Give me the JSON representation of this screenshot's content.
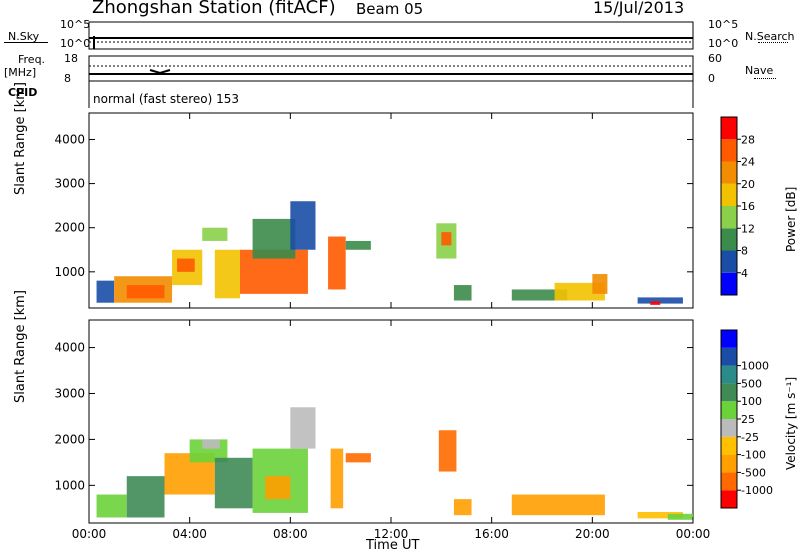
{
  "header": {
    "title": "Zhongshan Station (fitACF)",
    "beam": "Beam 05",
    "date": "15/Jul/2013"
  },
  "top_panels": {
    "nsky_label": "N.Sky",
    "nsky_ticks": [
      "10^5",
      "10^0"
    ],
    "nsearch_label": "N.Search",
    "nsearch_ticks": [
      "10^5",
      "10^0"
    ],
    "freq_label_top": "Freq.",
    "freq_label_unit": "[MHz]",
    "freq_ticks": [
      "18",
      "8"
    ],
    "nave_label": "Nave",
    "nave_ticks": [
      "60",
      "0"
    ],
    "cpid_label": "CPID",
    "cpid_value": "normal (fast stereo) 153"
  },
  "colors": {
    "power": [
      "#0000ff",
      "#1a4ea6",
      "#3b8b4a",
      "#8bd04a",
      "#f2c200",
      "#f28c00",
      "#ff5a00",
      "#ff0000"
    ],
    "velocity": [
      "#ff0000",
      "#ff6a00",
      "#ff9f00",
      "#ffc000",
      "#bbbbbb",
      "#6cd23a",
      "#3f8a55",
      "#2b8a8a",
      "#1a4ea6",
      "#0000ff"
    ]
  },
  "chart_data": [
    {
      "type": "heatmap",
      "title": "",
      "xlabel": "Time UT",
      "ylabel": "Slant Range [km]",
      "x_ticks": [
        "00:00",
        "04:00",
        "08:00",
        "12:00",
        "16:00",
        "20:00",
        "00:00"
      ],
      "y_ticks": [
        "1000",
        "2000",
        "3000",
        "4000"
      ],
      "ylim": [
        180,
        4600
      ],
      "colorbar_label": "Power [dB]",
      "colorbar_ticks": [
        "4",
        "8",
        "12",
        "16",
        "20",
        "24",
        "28"
      ],
      "colorbar_range": [
        0,
        32
      ],
      "patches": [
        {
          "t0": 0.3,
          "t1": 1.0,
          "r0": 300,
          "r1": 800,
          "v": 6
        },
        {
          "t0": 1.0,
          "t1": 3.3,
          "r0": 300,
          "r1": 900,
          "v": 20
        },
        {
          "t0": 1.5,
          "t1": 3.0,
          "r0": 400,
          "r1": 700,
          "v": 27
        },
        {
          "t0": 3.3,
          "t1": 4.5,
          "r0": 700,
          "r1": 1500,
          "v": 18
        },
        {
          "t0": 3.5,
          "t1": 4.2,
          "r0": 1000,
          "r1": 1300,
          "v": 26
        },
        {
          "t0": 4.5,
          "t1": 5.5,
          "r0": 1700,
          "r1": 2000,
          "v": 12
        },
        {
          "t0": 5.0,
          "t1": 6.0,
          "r0": 400,
          "r1": 1500,
          "v": 16
        },
        {
          "t0": 6.0,
          "t1": 8.7,
          "r0": 500,
          "r1": 1500,
          "v": 27
        },
        {
          "t0": 6.5,
          "t1": 8.2,
          "r0": 1300,
          "r1": 2200,
          "v": 10
        },
        {
          "t0": 8.0,
          "t1": 9.0,
          "r0": 1500,
          "r1": 2600,
          "v": 7
        },
        {
          "t0": 9.5,
          "t1": 10.2,
          "r0": 600,
          "r1": 1800,
          "v": 26
        },
        {
          "t0": 10.2,
          "t1": 11.2,
          "r0": 1500,
          "r1": 1700,
          "v": 8
        },
        {
          "t0": 13.8,
          "t1": 14.6,
          "r0": 1300,
          "r1": 2100,
          "v": 15
        },
        {
          "t0": 14.0,
          "t1": 14.4,
          "r0": 1600,
          "r1": 1900,
          "v": 24
        },
        {
          "t0": 14.5,
          "t1": 15.2,
          "r0": 350,
          "r1": 700,
          "v": 10
        },
        {
          "t0": 16.8,
          "t1": 19.0,
          "r0": 350,
          "r1": 600,
          "v": 9
        },
        {
          "t0": 18.5,
          "t1": 20.5,
          "r0": 350,
          "r1": 750,
          "v": 19
        },
        {
          "t0": 20.0,
          "t1": 20.6,
          "r0": 500,
          "r1": 950,
          "v": 22
        },
        {
          "t0": 21.8,
          "t1": 23.6,
          "r0": 280,
          "r1": 420,
          "v": 5
        },
        {
          "t0": 22.3,
          "t1": 22.7,
          "r0": 250,
          "r1": 330,
          "v": 28
        }
      ]
    },
    {
      "type": "heatmap",
      "title": "",
      "xlabel": "Time UT",
      "ylabel": "Slant Range [km]",
      "x_ticks": [
        "00:00",
        "04:00",
        "08:00",
        "12:00",
        "16:00",
        "20:00",
        "00:00"
      ],
      "y_ticks": [
        "1000",
        "2000",
        "3000",
        "4000"
      ],
      "ylim": [
        180,
        4600
      ],
      "colorbar_label": "Velocity [m s⁻¹]",
      "colorbar_ticks": [
        "-1000",
        "-500",
        "-100",
        "-25",
        "25",
        "100",
        "500",
        "1000"
      ],
      "patches": [
        {
          "t0": 0.3,
          "t1": 1.5,
          "r0": 300,
          "r1": 800,
          "v": 5
        },
        {
          "t0": 1.5,
          "t1": 3.0,
          "r0": 300,
          "r1": 1200,
          "v": 6
        },
        {
          "t0": 3.0,
          "t1": 5.0,
          "r0": 800,
          "r1": 1700,
          "v": 2
        },
        {
          "t0": 4.0,
          "t1": 5.5,
          "r0": 1500,
          "r1": 2000,
          "v": 5
        },
        {
          "t0": 4.5,
          "t1": 5.2,
          "r0": 1800,
          "r1": 2000,
          "v": 4
        },
        {
          "t0": 5.0,
          "t1": 6.5,
          "r0": 500,
          "r1": 1600,
          "v": 6
        },
        {
          "t0": 6.5,
          "t1": 8.7,
          "r0": 400,
          "r1": 1800,
          "v": 5
        },
        {
          "t0": 7.0,
          "t1": 8.0,
          "r0": 700,
          "r1": 1200,
          "v": 2
        },
        {
          "t0": 8.0,
          "t1": 9.0,
          "r0": 1800,
          "r1": 2700,
          "v": 4
        },
        {
          "t0": 9.6,
          "t1": 10.1,
          "r0": 500,
          "r1": 1800,
          "v": 2
        },
        {
          "t0": 10.2,
          "t1": 11.2,
          "r0": 1500,
          "r1": 1700,
          "v": 1
        },
        {
          "t0": 13.9,
          "t1": 14.6,
          "r0": 1300,
          "r1": 2200,
          "v": 1
        },
        {
          "t0": 14.5,
          "t1": 15.2,
          "r0": 350,
          "r1": 700,
          "v": 2
        },
        {
          "t0": 16.8,
          "t1": 20.5,
          "r0": 350,
          "r1": 800,
          "v": 2
        },
        {
          "t0": 21.8,
          "t1": 23.6,
          "r0": 280,
          "r1": 420,
          "v": 3
        },
        {
          "t0": 23.0,
          "t1": 24.0,
          "r0": 250,
          "r1": 380,
          "v": 5
        }
      ]
    }
  ]
}
